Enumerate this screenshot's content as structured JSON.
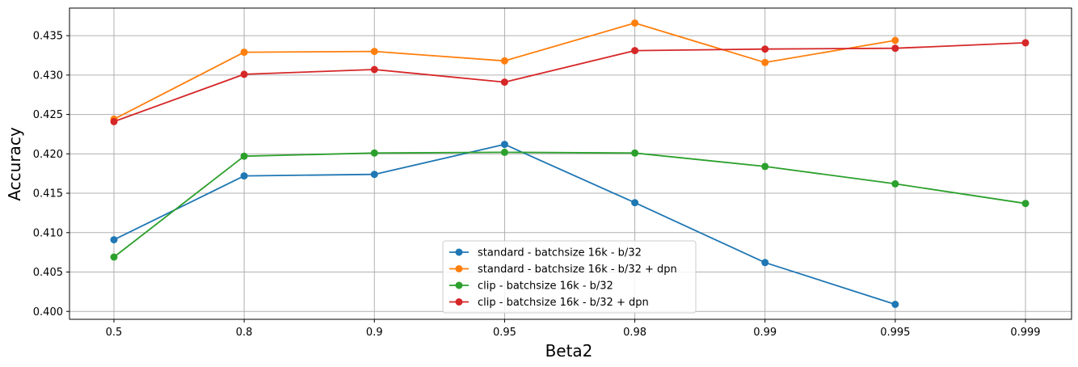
{
  "chart_data": {
    "type": "line",
    "title": "",
    "xlabel": "Beta2",
    "ylabel": "Accuracy",
    "categories": [
      "0.5",
      "0.8",
      "0.9",
      "0.95",
      "0.98",
      "0.99",
      "0.995",
      "0.999"
    ],
    "ylim": [
      0.399,
      0.4385
    ],
    "yticks": [
      "0.400",
      "0.405",
      "0.410",
      "0.415",
      "0.420",
      "0.425",
      "0.430",
      "0.435"
    ],
    "grid": true,
    "legend_position": "lower center",
    "series": [
      {
        "name": "standard - batchsize 16k - b/32",
        "color": "#1f77b4",
        "values": [
          0.4091,
          0.4172,
          0.4174,
          0.4212,
          0.4138,
          0.4062,
          0.4009,
          null
        ]
      },
      {
        "name": "standard - batchsize 16k - b/32 + dpn",
        "color": "#ff7f0e",
        "values": [
          0.4244,
          0.4329,
          0.433,
          0.4318,
          0.4366,
          0.4316,
          0.4344,
          null
        ]
      },
      {
        "name": "clip - batchsize 16k - b/32",
        "color": "#2ca02c",
        "values": [
          0.4069,
          0.4197,
          0.4201,
          0.4202,
          0.4201,
          0.4184,
          0.4162,
          0.4137
        ]
      },
      {
        "name": "clip - batchsize 16k - b/32 + dpn",
        "color": "#d62728",
        "values": [
          0.4241,
          0.4301,
          0.4307,
          0.4291,
          0.4331,
          0.4333,
          0.4334,
          0.4341
        ]
      }
    ]
  }
}
